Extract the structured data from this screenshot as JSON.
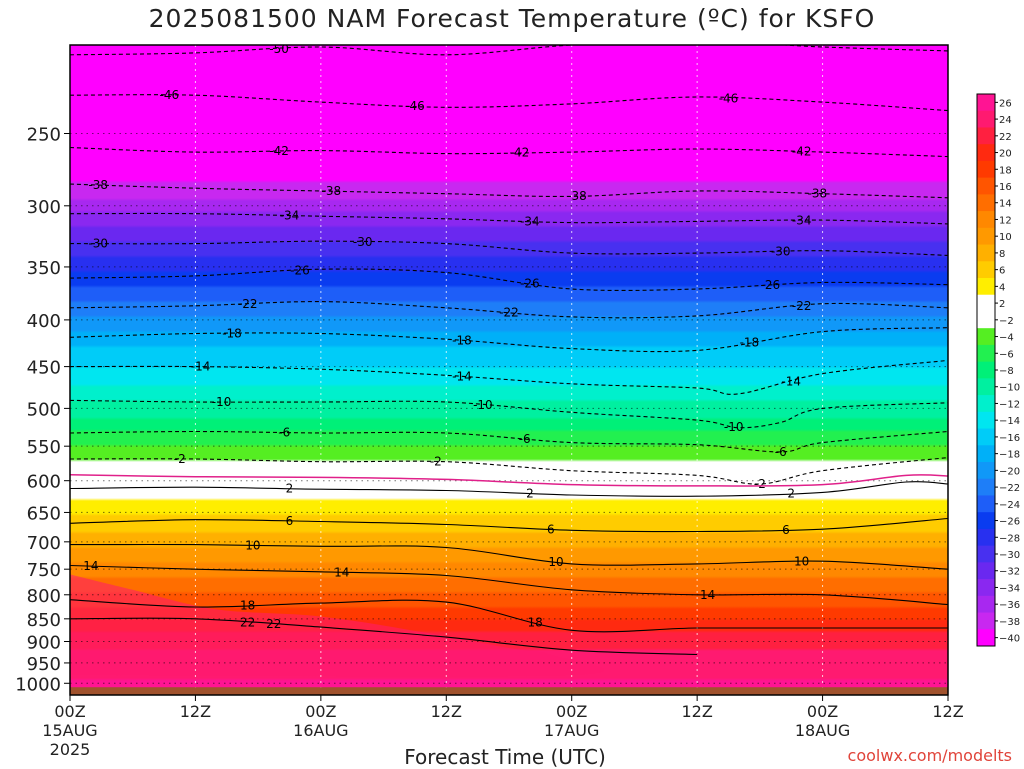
{
  "title": "2025081500 NAM Forecast Temperature (ºC) for KSFO",
  "xlabel": "Forecast Time (UTC)",
  "credit": "coolwx.com/modelts",
  "chart_data": {
    "type": "heatmap",
    "title": "2025081500 NAM Forecast Temperature (ºC) for KSFO",
    "xlabel": "Forecast Time (UTC)",
    "ylabel": "",
    "y_scale": "log",
    "y_inverted": true,
    "xlim_hours": [
      0,
      84
    ],
    "ylim_hpa": [
      200,
      1030
    ],
    "y_ticks": [
      250,
      300,
      350,
      400,
      450,
      500,
      550,
      600,
      650,
      700,
      750,
      800,
      850,
      900,
      950,
      1000
    ],
    "x_ticks": [
      {
        "hour": 0,
        "lines": [
          "00Z",
          "15AUG",
          "2025"
        ]
      },
      {
        "hour": 12,
        "lines": [
          "12Z"
        ]
      },
      {
        "hour": 24,
        "lines": [
          "00Z",
          "16AUG"
        ]
      },
      {
        "hour": 36,
        "lines": [
          "12Z"
        ]
      },
      {
        "hour": 48,
        "lines": [
          "00Z",
          "17AUG"
        ]
      },
      {
        "hour": 60,
        "lines": [
          "12Z"
        ]
      },
      {
        "hour": 72,
        "lines": [
          "00Z",
          "18AUG"
        ]
      },
      {
        "hour": 84,
        "lines": [
          "12Z"
        ]
      }
    ],
    "colorbar": {
      "levels": [
        26,
        24,
        22,
        20,
        18,
        16,
        14,
        12,
        10,
        8,
        6,
        4,
        2,
        -2,
        -4,
        -6,
        -8,
        -10,
        -12,
        -14,
        -16,
        -18,
        -20,
        -22,
        -24,
        -26,
        -28,
        -30,
        -32,
        -34,
        -36,
        -38,
        -40
      ],
      "colors": {
        "26": "#ff1493",
        "24": "#ff1a70",
        "22": "#ff2040",
        "20": "#ff2a10",
        "18": "#ff3a00",
        "16": "#ff5500",
        "14": "#ff6e00",
        "12": "#ff8800",
        "10": "#ff9900",
        "8": "#ffb000",
        "6": "#ffcc00",
        "4": "#ffee00",
        "2": "#ffffff",
        "-2": "#ffffff",
        "-4": "#55ee22",
        "-6": "#22f050",
        "-8": "#00f078",
        "-10": "#00f0a0",
        "-12": "#00f0cc",
        "-14": "#00e6f0",
        "-16": "#00ccf8",
        "-18": "#00b0f8",
        "-20": "#1098f8",
        "-22": "#1e7ef8",
        "-24": "#1e5ef8",
        "-26": "#0a3cf0",
        "-28": "#2830f0",
        "-30": "#4830f0",
        "-32": "#6a28f0",
        "-34": "#8a28f0",
        "-36": "#a828f0",
        "-38": "#c828f0",
        "-40": "#ff00ff"
      }
    },
    "isotherms": [
      {
        "temp": -50,
        "points": [
          [
            0,
            205
          ],
          [
            12,
            204
          ],
          [
            24,
            201
          ],
          [
            36,
            205
          ],
          [
            48,
            200
          ],
          [
            60,
            198
          ],
          [
            72,
            201
          ],
          [
            84,
            203
          ]
        ],
        "labels": [
          {
            "hour": 20,
            "text": "-50"
          },
          {
            "hour": 60,
            "text": "-50"
          }
        ]
      },
      {
        "temp": -46,
        "points": [
          [
            0,
            227
          ],
          [
            12,
            227
          ],
          [
            24,
            231
          ],
          [
            36,
            234
          ],
          [
            48,
            232
          ],
          [
            60,
            228
          ],
          [
            72,
            231
          ],
          [
            84,
            236
          ]
        ],
        "labels": [
          {
            "hour": 9.5,
            "text": "-46"
          },
          {
            "hour": 33,
            "text": "-46"
          },
          {
            "hour": 63,
            "text": "-46"
          }
        ]
      },
      {
        "temp": -42,
        "points": [
          [
            0,
            259
          ],
          [
            12,
            262
          ],
          [
            24,
            261
          ],
          [
            36,
            263
          ],
          [
            48,
            262
          ],
          [
            60,
            260
          ],
          [
            72,
            262
          ],
          [
            84,
            265
          ]
        ],
        "labels": [
          {
            "hour": 20,
            "text": "-42"
          },
          {
            "hour": 43,
            "text": "-42"
          },
          {
            "hour": 70,
            "text": "-42"
          }
        ]
      },
      {
        "temp": -38,
        "points": [
          [
            0,
            284
          ],
          [
            12,
            287
          ],
          [
            24,
            289
          ],
          [
            36,
            291
          ],
          [
            48,
            293
          ],
          [
            60,
            289
          ],
          [
            72,
            291
          ],
          [
            84,
            294
          ]
        ],
        "labels": [
          {
            "hour": 2.7,
            "text": "-38"
          },
          {
            "hour": 25,
            "text": "-38"
          },
          {
            "hour": 48.5,
            "text": "-38"
          },
          {
            "hour": 71.5,
            "text": "-38"
          }
        ]
      },
      {
        "temp": -34,
        "points": [
          [
            0,
            306
          ],
          [
            12,
            306
          ],
          [
            24,
            308
          ],
          [
            36,
            310
          ],
          [
            48,
            313
          ],
          [
            60,
            312
          ],
          [
            72,
            311
          ],
          [
            84,
            314
          ]
        ],
        "labels": [
          {
            "hour": 21,
            "text": "-34"
          },
          {
            "hour": 44,
            "text": "-34"
          },
          {
            "hour": 70,
            "text": "-34"
          }
        ]
      },
      {
        "temp": -30,
        "points": [
          [
            0,
            330
          ],
          [
            12,
            330
          ],
          [
            24,
            328
          ],
          [
            36,
            330
          ],
          [
            48,
            338
          ],
          [
            60,
            338
          ],
          [
            72,
            336
          ],
          [
            84,
            340
          ]
        ],
        "labels": [
          {
            "hour": 2.7,
            "text": "-30"
          },
          {
            "hour": 28,
            "text": "-30"
          },
          {
            "hour": 68,
            "text": "-30"
          }
        ]
      },
      {
        "temp": -26,
        "points": [
          [
            0,
            360
          ],
          [
            12,
            358
          ],
          [
            24,
            352
          ],
          [
            36,
            355
          ],
          [
            48,
            370
          ],
          [
            60,
            370
          ],
          [
            72,
            364
          ],
          [
            84,
            366
          ]
        ],
        "labels": [
          {
            "hour": 22,
            "text": "-26"
          },
          {
            "hour": 44,
            "text": "-26"
          },
          {
            "hour": 67,
            "text": "-26"
          }
        ]
      },
      {
        "temp": -22,
        "points": [
          [
            0,
            388
          ],
          [
            12,
            386
          ],
          [
            24,
            382
          ],
          [
            36,
            388
          ],
          [
            48,
            397
          ],
          [
            60,
            396
          ],
          [
            72,
            384
          ],
          [
            84,
            388
          ]
        ],
        "labels": [
          {
            "hour": 17,
            "text": "-22"
          },
          {
            "hour": 42,
            "text": "-22"
          },
          {
            "hour": 70,
            "text": "-22"
          }
        ]
      },
      {
        "temp": -18,
        "points": [
          [
            0,
            418
          ],
          [
            12,
            414
          ],
          [
            24,
            414
          ],
          [
            36,
            420
          ],
          [
            48,
            430
          ],
          [
            60,
            432
          ],
          [
            72,
            412
          ],
          [
            84,
            408
          ]
        ],
        "labels": [
          {
            "hour": 15.5,
            "text": "-18"
          },
          {
            "hour": 37.5,
            "text": "-18"
          },
          {
            "hour": 65,
            "text": "-18"
          }
        ]
      },
      {
        "temp": -14,
        "points": [
          [
            0,
            450
          ],
          [
            12,
            450
          ],
          [
            24,
            453
          ],
          [
            36,
            460
          ],
          [
            48,
            470
          ],
          [
            60,
            475
          ],
          [
            64,
            482
          ],
          [
            72,
            458
          ],
          [
            84,
            443
          ]
        ],
        "labels": [
          {
            "hour": 12.5,
            "text": "-14"
          },
          {
            "hour": 37.5,
            "text": "-14"
          },
          {
            "hour": 69,
            "text": "-14"
          }
        ]
      },
      {
        "temp": -10,
        "points": [
          [
            0,
            490
          ],
          [
            12,
            492
          ],
          [
            24,
            492
          ],
          [
            36,
            492
          ],
          [
            48,
            505
          ],
          [
            60,
            515
          ],
          [
            64,
            525
          ],
          [
            68,
            518
          ],
          [
            72,
            500
          ],
          [
            84,
            493
          ]
        ],
        "labels": [
          {
            "hour": 14.5,
            "text": "-10"
          },
          {
            "hour": 39.5,
            "text": "-10"
          },
          {
            "hour": 63.5,
            "text": "-10"
          }
        ]
      },
      {
        "temp": -6,
        "points": [
          [
            0,
            532
          ],
          [
            12,
            530
          ],
          [
            24,
            532
          ],
          [
            36,
            532
          ],
          [
            48,
            545
          ],
          [
            60,
            548
          ],
          [
            68,
            558
          ],
          [
            72,
            545
          ],
          [
            84,
            530
          ]
        ],
        "labels": [
          {
            "hour": 20.5,
            "text": "-6"
          },
          {
            "hour": 43.5,
            "text": "-6"
          },
          {
            "hour": 68,
            "text": "-6"
          }
        ]
      },
      {
        "temp": -2,
        "points": [
          [
            0,
            568
          ],
          [
            12,
            568
          ],
          [
            24,
            572
          ],
          [
            36,
            572
          ],
          [
            48,
            585
          ],
          [
            60,
            592
          ],
          [
            66,
            605
          ],
          [
            72,
            585
          ],
          [
            84,
            566
          ]
        ],
        "labels": [
          {
            "hour": 10.5,
            "text": "-2"
          },
          {
            "hour": 35,
            "text": "-2"
          },
          {
            "hour": 66,
            "text": "-2"
          }
        ]
      },
      {
        "temp": 2,
        "points": [
          [
            0,
            612
          ],
          [
            12,
            610
          ],
          [
            24,
            613
          ],
          [
            36,
            615
          ],
          [
            48,
            622
          ],
          [
            60,
            624
          ],
          [
            72,
            618
          ],
          [
            80,
            602
          ],
          [
            84,
            605
          ]
        ],
        "labels": [
          {
            "hour": 21,
            "text": "2"
          },
          {
            "hour": 44,
            "text": "2"
          },
          {
            "hour": 69,
            "text": "2"
          }
        ]
      },
      {
        "temp": 6,
        "points": [
          [
            0,
            668
          ],
          [
            12,
            662
          ],
          [
            24,
            665
          ],
          [
            36,
            670
          ],
          [
            48,
            680
          ],
          [
            60,
            682
          ],
          [
            72,
            678
          ],
          [
            84,
            660
          ]
        ],
        "labels": [
          {
            "hour": 21,
            "text": "6"
          },
          {
            "hour": 46,
            "text": "6"
          },
          {
            "hour": 68.5,
            "text": "6"
          }
        ]
      },
      {
        "temp": 10,
        "points": [
          [
            0,
            705
          ],
          [
            12,
            705
          ],
          [
            24,
            708
          ],
          [
            36,
            710
          ],
          [
            48,
            740
          ],
          [
            60,
            740
          ],
          [
            72,
            735
          ],
          [
            84,
            750
          ]
        ],
        "labels": [
          {
            "hour": 17.5,
            "text": "10"
          },
          {
            "hour": 46.5,
            "text": "10"
          },
          {
            "hour": 70,
            "text": "10"
          }
        ]
      },
      {
        "temp": 14,
        "points": [
          [
            0,
            743
          ],
          [
            12,
            750
          ],
          [
            24,
            755
          ],
          [
            36,
            762
          ],
          [
            48,
            790
          ],
          [
            60,
            800
          ],
          [
            72,
            800
          ],
          [
            84,
            820
          ]
        ],
        "labels": [
          {
            "hour": 2,
            "text": "14"
          },
          {
            "hour": 26,
            "text": "14"
          },
          {
            "hour": 61,
            "text": "14"
          }
        ]
      },
      {
        "temp": 18,
        "points": [
          [
            0,
            810
          ],
          [
            12,
            825
          ],
          [
            24,
            817
          ],
          [
            36,
            815
          ],
          [
            48,
            875
          ],
          [
            60,
            870
          ],
          [
            72,
            870
          ],
          [
            84,
            870
          ]
        ],
        "labels": [
          {
            "hour": 17,
            "text": "18"
          },
          {
            "hour": 44.5,
            "text": "18"
          }
        ]
      },
      {
        "temp": 22,
        "points": [
          [
            0,
            850
          ],
          [
            12,
            850
          ],
          [
            24,
            868
          ],
          [
            36,
            890
          ],
          [
            48,
            920
          ],
          [
            60,
            930
          ]
        ],
        "labels": [
          {
            "hour": 17,
            "text": "22"
          },
          {
            "hour": 19.5,
            "text": "22"
          }
        ]
      }
    ],
    "zero_line": {
      "temp": 0,
      "points": [
        [
          0,
          591
        ],
        [
          12,
          594
        ],
        [
          24,
          595
        ],
        [
          36,
          598
        ],
        [
          48,
          606
        ],
        [
          60,
          608
        ],
        [
          72,
          606
        ],
        [
          80,
          592
        ],
        [
          84,
          593
        ]
      ]
    },
    "terrain_pressure_hpa": 1010
  }
}
